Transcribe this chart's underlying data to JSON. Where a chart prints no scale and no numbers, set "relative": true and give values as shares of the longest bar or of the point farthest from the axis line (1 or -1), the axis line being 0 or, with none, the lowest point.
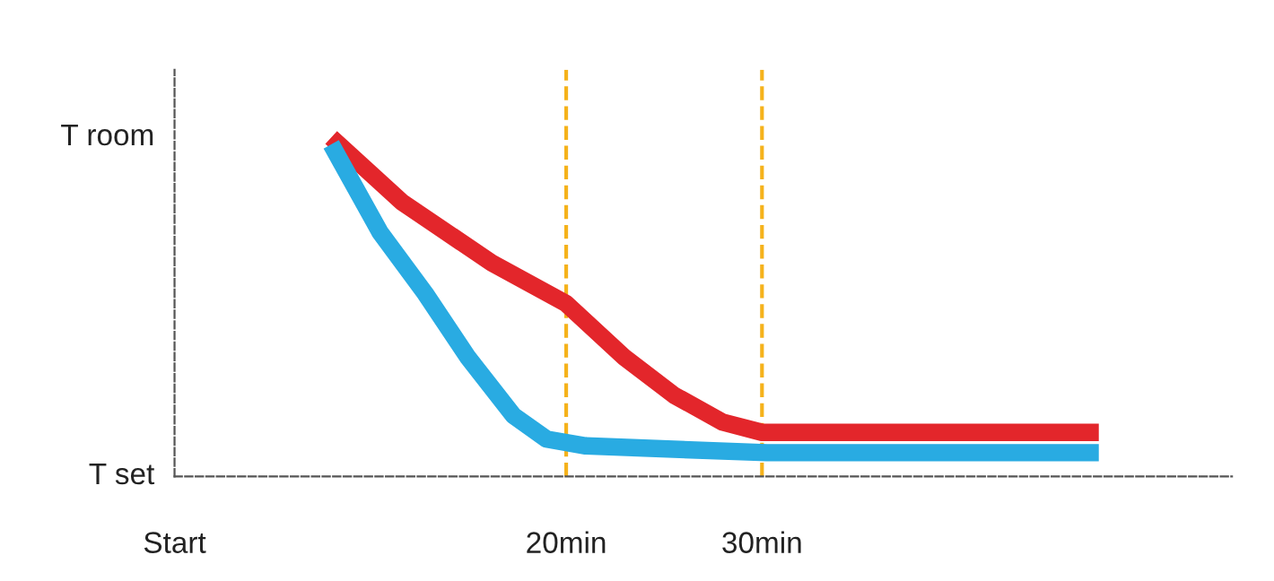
{
  "chart_data": {
    "type": "line",
    "relative": true,
    "xlim": [
      0,
      54
    ],
    "xticks": [
      {
        "value": 0,
        "label": "Start"
      },
      {
        "value": 20,
        "label": "20min"
      },
      {
        "value": 30,
        "label": "30min"
      }
    ],
    "annotations": [
      "T room",
      "T set"
    ],
    "series": [
      {
        "color": "#e3262b",
        "x": [
          8.0,
          11.6,
          16.2,
          20,
          23,
          25.5,
          28,
          30,
          47.2
        ],
        "values": [
          1.0,
          0.81,
          0.63,
          0.51,
          0.35,
          0.24,
          0.16,
          0.13,
          0.13
        ]
      },
      {
        "color": "#29abe2",
        "x": [
          8.0,
          10.5,
          12.8,
          15.0,
          17.3,
          19.0,
          21.0,
          30.25,
          47.2
        ],
        "values": [
          0.98,
          0.72,
          0.54,
          0.35,
          0.18,
          0.11,
          0.09,
          0.07,
          0.07
        ]
      }
    ],
    "ref_lines": [
      {
        "axis": "x",
        "value": 20,
        "color": "#f5b21b",
        "line_style": "dashed"
      },
      {
        "axis": "x",
        "value": 30,
        "color": "#f5b21b",
        "line_style": "dashed"
      }
    ],
    "grid": false,
    "marker": "none",
    "line_style": "solid"
  }
}
